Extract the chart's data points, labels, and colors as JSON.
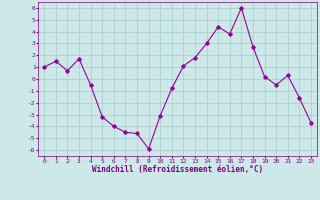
{
  "x": [
    0,
    1,
    2,
    3,
    4,
    5,
    6,
    7,
    8,
    9,
    10,
    11,
    12,
    13,
    14,
    15,
    16,
    17,
    18,
    19,
    20,
    21,
    22,
    23
  ],
  "y": [
    1.0,
    1.5,
    0.7,
    1.7,
    -0.5,
    -3.2,
    -4.0,
    -4.5,
    -4.6,
    -5.9,
    -3.1,
    -0.8,
    1.1,
    1.8,
    3.0,
    4.4,
    3.8,
    6.0,
    2.7,
    0.2,
    -0.5,
    0.3,
    -1.6,
    -3.7
  ],
  "line_color": "#990099",
  "marker": "D",
  "markersize": 1.8,
  "linewidth": 0.8,
  "xlim": [
    -0.5,
    23.5
  ],
  "ylim": [
    -6.5,
    6.5
  ],
  "yticks": [
    -6,
    -5,
    -4,
    -3,
    -2,
    -1,
    0,
    1,
    2,
    3,
    4,
    5,
    6
  ],
  "xticks": [
    0,
    1,
    2,
    3,
    4,
    5,
    6,
    7,
    8,
    9,
    10,
    11,
    12,
    13,
    14,
    15,
    16,
    17,
    18,
    19,
    20,
    21,
    22,
    23
  ],
  "xlabel": "Windchill (Refroidissement éolien,°C)",
  "bg_color": "#cce8e8",
  "grid_color": "#aacccc",
  "text_color": "#800080",
  "xlabel_color": "#800080",
  "tick_color": "#800080",
  "tick_fontsize": 4.5,
  "xlabel_fontsize": 5.5
}
